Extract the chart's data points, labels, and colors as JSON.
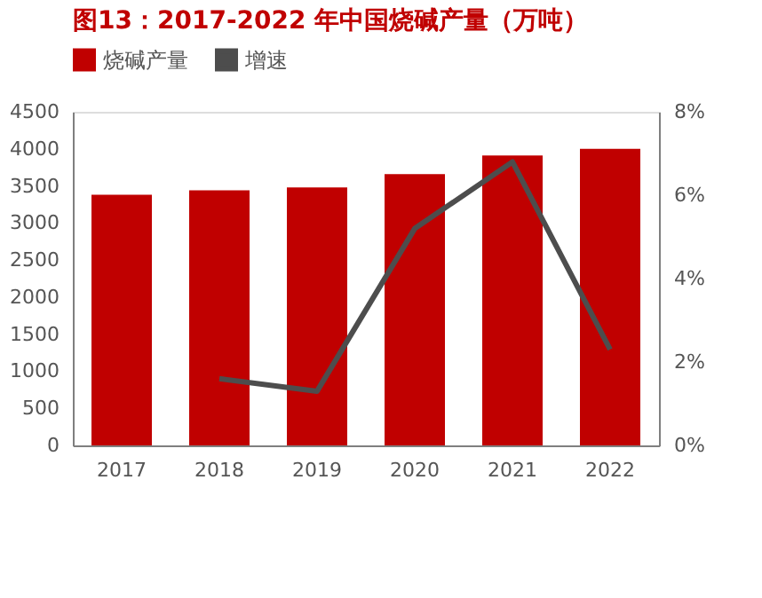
{
  "chart_data": {
    "type": "bar",
    "title": "图13：2017-2022 年中国烧碱产量（万吨）",
    "categories": [
      "2017",
      "2018",
      "2019",
      "2020",
      "2021",
      "2022"
    ],
    "series": [
      {
        "name": "烧碱产量",
        "color": "#c00000",
        "values": [
          3380,
          3440,
          3480,
          3660,
          3910,
          4000
        ]
      },
      {
        "name": "增速",
        "type": "line",
        "axis": "y2",
        "color": "#4d4d4d",
        "values": [
          null,
          1.6,
          1.3,
          5.2,
          6.8,
          2.3
        ]
      }
    ],
    "ylim": [
      0,
      4500
    ],
    "yticks": [
      0,
      500,
      1000,
      1500,
      2000,
      2500,
      3000,
      3500,
      4000,
      4500
    ],
    "y2lim": [
      0,
      8
    ],
    "y2ticks": [
      {
        "value": 0,
        "label": "0%"
      },
      {
        "value": 2,
        "label": "2%"
      },
      {
        "value": 4,
        "label": "4%"
      },
      {
        "value": 6,
        "label": "6%"
      },
      {
        "value": 8,
        "label": "8%"
      }
    ],
    "grid": false,
    "legend": "top"
  }
}
